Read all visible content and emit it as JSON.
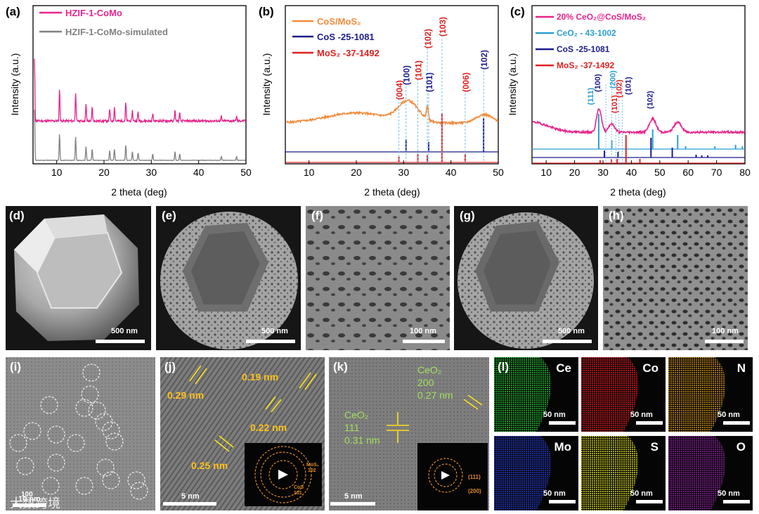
{
  "panels": {
    "a": {
      "letter": "(a)",
      "legend": [
        "HZIF-1-CoMo",
        "HZIF-1-CoMo-simulated"
      ],
      "xlabel": "2 theta (deg)",
      "ylabel": "Intensity (a.u.)",
      "xticks": [
        "10",
        "20",
        "30",
        "40",
        "50"
      ]
    },
    "b": {
      "letter": "(b)",
      "legend_top": "CoS/MoS₂",
      "legend": [
        "CoS -25-1081",
        "MoS₂ -37-1492"
      ],
      "xlabel": "2 theta (deg)",
      "ylabel": "Intensity (a.u.)",
      "xticks": [
        "10",
        "20",
        "30",
        "40",
        "50"
      ],
      "peak_labels": [
        "(004)",
        "(100)",
        "(101)",
        "(102)",
        "(101)",
        "(103)",
        "(006)",
        "(102)"
      ]
    },
    "c": {
      "letter": "(c)",
      "legend": [
        "20% CeO₂@CoS/MoS₂",
        "CeO₂ - 43-1002",
        "CoS -25-1081",
        "MoS₂ -37-1492"
      ],
      "xlabel": "2 theta (deg)",
      "ylabel": "Intensity (a.u.)",
      "xticks": [
        "10",
        "20",
        "30",
        "40",
        "50",
        "60",
        "70",
        "80"
      ],
      "peak_labels": [
        "(111)",
        "(100)",
        "(200)",
        "(101)",
        "(102)",
        "(101)",
        "(102)"
      ]
    },
    "d": {
      "letter": "(d)",
      "scale": "500 nm"
    },
    "e": {
      "letter": "(e)",
      "scale": "500 nm"
    },
    "f": {
      "letter": "(f)",
      "scale": "100 nm"
    },
    "g": {
      "letter": "(g)",
      "scale": "500 nm"
    },
    "h": {
      "letter": "(h)",
      "scale": "100 nm"
    },
    "i": {
      "letter": "(i)",
      "scale": "10 nm",
      "scale_top": "100"
    },
    "j": {
      "letter": "(j)",
      "d1": "0.29 nm",
      "d2": "0.19 nm",
      "d3": "0.22 nm",
      "d4": "0.25 nm",
      "scale": "5 nm",
      "saed1": "MoS₂",
      "saed1b": "102",
      "saed2": "CoS",
      "saed2b": "101"
    },
    "k": {
      "letter": "(k)",
      "ce1": "CeO₂",
      "ce1b": "200",
      "ce1c": "0.27 nm",
      "ce2": "CeO₂",
      "ce2b": "111",
      "ce2c": "0.31 nm",
      "scale": "5 nm",
      "saed1": "(111)",
      "saed2": "(200)"
    },
    "l": {
      "letter": "(l)",
      "maps": [
        {
          "el": "Ce",
          "scale": "50 nm",
          "color": "#1fa32a"
        },
        {
          "el": "Co",
          "scale": "50 nm",
          "color": "#c0121a"
        },
        {
          "el": "N",
          "scale": "50 nm",
          "color": "#b07a10"
        },
        {
          "el": "Mo",
          "scale": "50 nm",
          "color": "#1d2fb5"
        },
        {
          "el": "S",
          "scale": "50 nm",
          "color": "#b8b81a"
        },
        {
          "el": "O",
          "scale": "50 nm",
          "color": "#7a1a8a"
        }
      ]
    }
  },
  "watermark": "大数跨境",
  "chart_data": [
    {
      "type": "line",
      "title": "(a)",
      "xlabel": "2 theta (deg)",
      "ylabel": "Intensity (a.u.)",
      "xlim": [
        5,
        50
      ],
      "series": [
        {
          "name": "HZIF-1-CoMo",
          "color": "#e8248c"
        },
        {
          "name": "HZIF-1-CoMo-simulated",
          "color": "#808080"
        }
      ]
    },
    {
      "type": "line",
      "title": "(b)",
      "xlabel": "2 theta (deg)",
      "ylabel": "Intensity (a.u.)",
      "xlim": [
        5,
        50
      ],
      "series": [
        {
          "name": "CoS/MoS2",
          "color": "#f28c3c"
        },
        {
          "name": "CoS -25-1081",
          "color": "#1c1c8c",
          "peaks": [
            30.5,
            35.3,
            46.9
          ]
        },
        {
          "name": "MoS2 -37-1492",
          "color": "#e02020",
          "peaks": [
            29.0,
            33.0,
            35.0,
            38.1,
            43.0
          ]
        }
      ]
    },
    {
      "type": "line",
      "title": "(c)",
      "xlabel": "2 theta (deg)",
      "ylabel": "Intensity (a.u.)",
      "xlim": [
        5,
        80
      ],
      "series": [
        {
          "name": "20% CeO2@CoS/MoS2",
          "color": "#e8248c"
        },
        {
          "name": "CeO2 - 43-1002",
          "color": "#2a9fd0",
          "peaks": [
            28.5,
            33.1,
            47.5,
            56.3,
            59.1,
            69.4,
            76.7,
            79.1
          ]
        },
        {
          "name": "CoS -25-1081",
          "color": "#1c1c8c",
          "peaks": [
            30.5,
            35.3,
            46.9,
            54.4,
            62.8,
            64.8,
            66.9
          ]
        },
        {
          "name": "MoS2 -37-1492",
          "color": "#e02020",
          "peaks": [
            29.0,
            33.0,
            35.0,
            38.1,
            43.0
          ]
        }
      ]
    }
  ]
}
